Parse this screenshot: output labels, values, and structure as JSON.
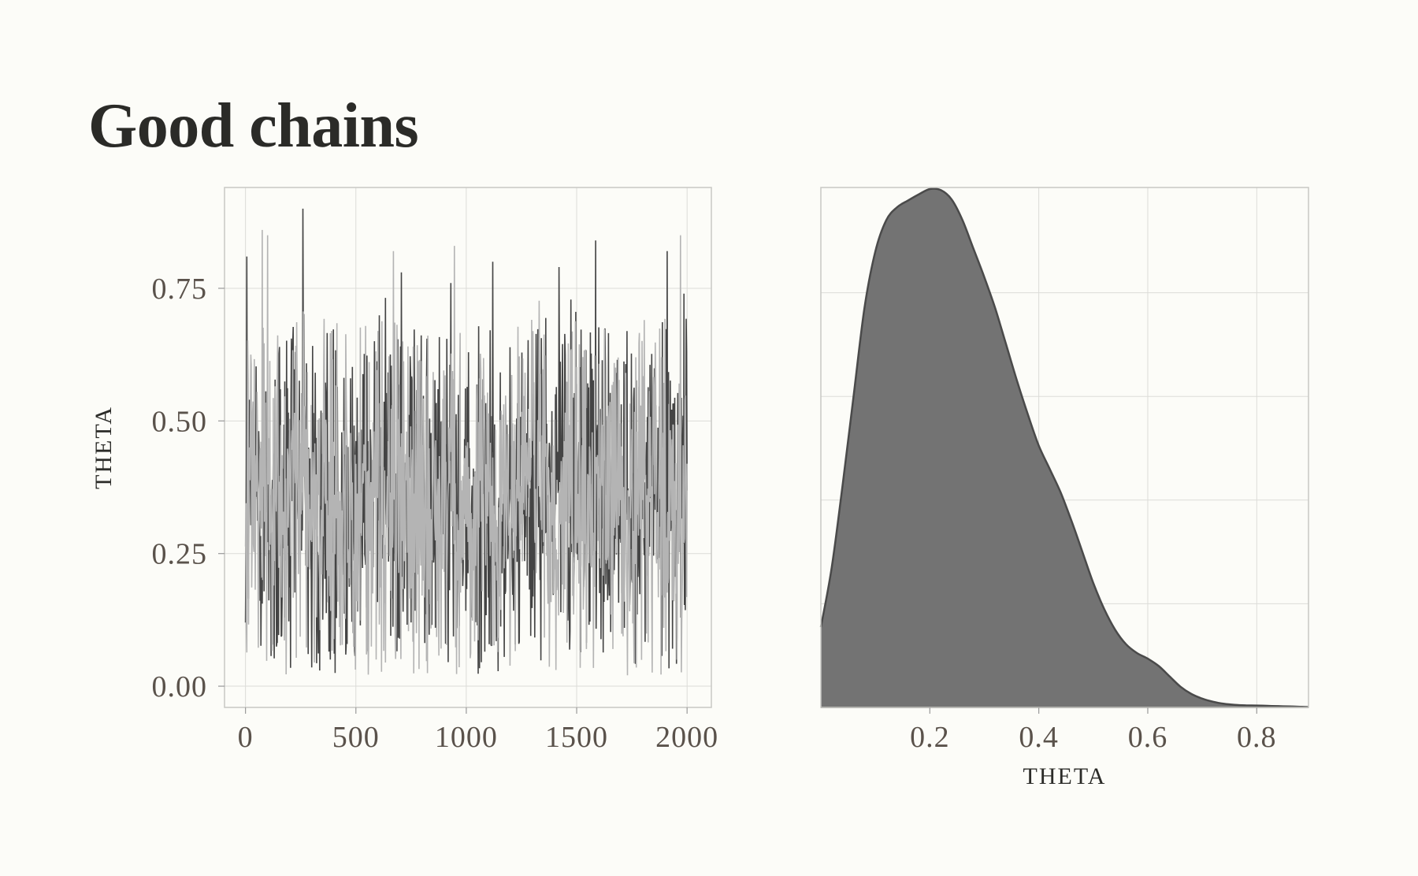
{
  "title": "Good chains",
  "colors": {
    "background": "#fcfcf8",
    "grid": "#dcdcd8",
    "panel_border": "#c8c8c4",
    "chain_dark": "#444444",
    "chain_light": "#b4b4b4",
    "density_fill": "#737373",
    "density_stroke": "#4a4a4a"
  },
  "chart_data": [
    {
      "type": "line",
      "name": "trace-plot",
      "xlabel": "",
      "ylabel": "THETA",
      "xlim": [
        -95,
        2110
      ],
      "ylim": [
        -0.04,
        0.94
      ],
      "x_ticks": [
        0,
        500,
        1000,
        1500,
        2000
      ],
      "x_tick_labels": [
        "0",
        "500",
        "1000",
        "1500",
        "2000"
      ],
      "y_ticks": [
        0,
        0.25,
        0.5,
        0.75
      ],
      "y_tick_labels": [
        "0.00",
        "0.25",
        "0.50",
        "0.75"
      ],
      "grid": true,
      "legend": "none",
      "iterations": 2000,
      "series": [
        {
          "color": "#444444",
          "summary": {
            "min": 0.005,
            "max": 0.9,
            "center": 0.3
          },
          "spikes": [
            {
              "x": 5,
              "y": 0.81
            },
            {
              "x": 260,
              "y": 0.9
            },
            {
              "x": 705,
              "y": 0.78
            },
            {
              "x": 930,
              "y": 0.76
            },
            {
              "x": 1120,
              "y": 0.8
            },
            {
              "x": 1420,
              "y": 0.79
            },
            {
              "x": 1585,
              "y": 0.84
            },
            {
              "x": 1910,
              "y": 0.82
            },
            {
              "x": 1985,
              "y": 0.74
            }
          ]
        },
        {
          "color": "#b4b4b4",
          "summary": {
            "min": 0.0,
            "max": 0.86,
            "center": 0.28
          },
          "spikes": [
            {
              "x": 75,
              "y": 0.86
            },
            {
              "x": 100,
              "y": 0.85
            },
            {
              "x": 670,
              "y": 0.82
            },
            {
              "x": 945,
              "y": 0.83
            },
            {
              "x": 1970,
              "y": 0.85
            }
          ]
        }
      ]
    },
    {
      "type": "area",
      "name": "density-plot",
      "xlabel": "THETA",
      "ylabel": "",
      "xlim": [
        0.0,
        0.895
      ],
      "ylim": [
        0.0,
        1.0
      ],
      "x_ticks": [
        0.2,
        0.4,
        0.6,
        0.8
      ],
      "x_tick_labels": [
        "0.2",
        "0.4",
        "0.6",
        "0.8"
      ],
      "y_grid": [
        0.2,
        0.4,
        0.6,
        0.8
      ],
      "grid": true,
      "legend": "none",
      "x": [
        0.0,
        0.02,
        0.04,
        0.06,
        0.08,
        0.1,
        0.12,
        0.14,
        0.16,
        0.18,
        0.2,
        0.22,
        0.24,
        0.26,
        0.28,
        0.3,
        0.32,
        0.34,
        0.36,
        0.38,
        0.4,
        0.42,
        0.44,
        0.46,
        0.48,
        0.5,
        0.52,
        0.54,
        0.56,
        0.58,
        0.6,
        0.62,
        0.64,
        0.66,
        0.68,
        0.7,
        0.72,
        0.74,
        0.76,
        0.78,
        0.8,
        0.82,
        0.84,
        0.86,
        0.88,
        0.895
      ],
      "y": [
        0.155,
        0.27,
        0.43,
        0.6,
        0.77,
        0.88,
        0.94,
        0.965,
        0.978,
        0.99,
        1.0,
        0.998,
        0.98,
        0.94,
        0.885,
        0.83,
        0.77,
        0.7,
        0.63,
        0.565,
        0.505,
        0.46,
        0.415,
        0.36,
        0.3,
        0.24,
        0.19,
        0.15,
        0.122,
        0.105,
        0.094,
        0.08,
        0.06,
        0.04,
        0.026,
        0.017,
        0.011,
        0.007,
        0.005,
        0.004,
        0.0036,
        0.003,
        0.0024,
        0.0018,
        0.0012,
        0.0008
      ]
    }
  ]
}
